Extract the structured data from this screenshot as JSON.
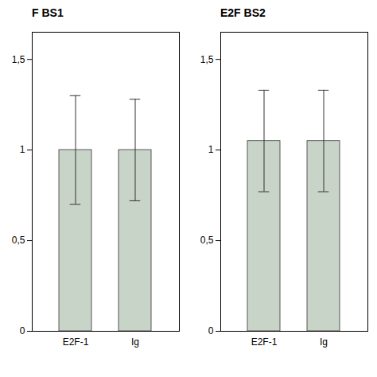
{
  "chart_data": [
    {
      "type": "bar",
      "title": "F BS1",
      "categories": [
        "E2F-1",
        "Ig"
      ],
      "values": [
        1.0,
        1.0
      ],
      "errors": [
        0.3,
        0.28
      ],
      "color": "#c8d4c8",
      "ylim": [
        0,
        1.65
      ],
      "yticks": [
        0,
        {
          "value": 0.5,
          "label": "0,5"
        },
        1,
        {
          "value": 1.5,
          "label": "1,5"
        }
      ]
    },
    {
      "type": "bar",
      "title": "E2F BS2",
      "categories": [
        "E2F-1",
        "Ig"
      ],
      "values": [
        1.05,
        1.05
      ],
      "errors": [
        0.28,
        0.28
      ],
      "color": "#c8d4c8",
      "ylim": [
        0,
        1.65
      ],
      "yticks": [
        0,
        {
          "value": 0.5,
          "label": "0,5"
        },
        1,
        {
          "value": 1.5,
          "label": "1,5"
        }
      ]
    }
  ]
}
